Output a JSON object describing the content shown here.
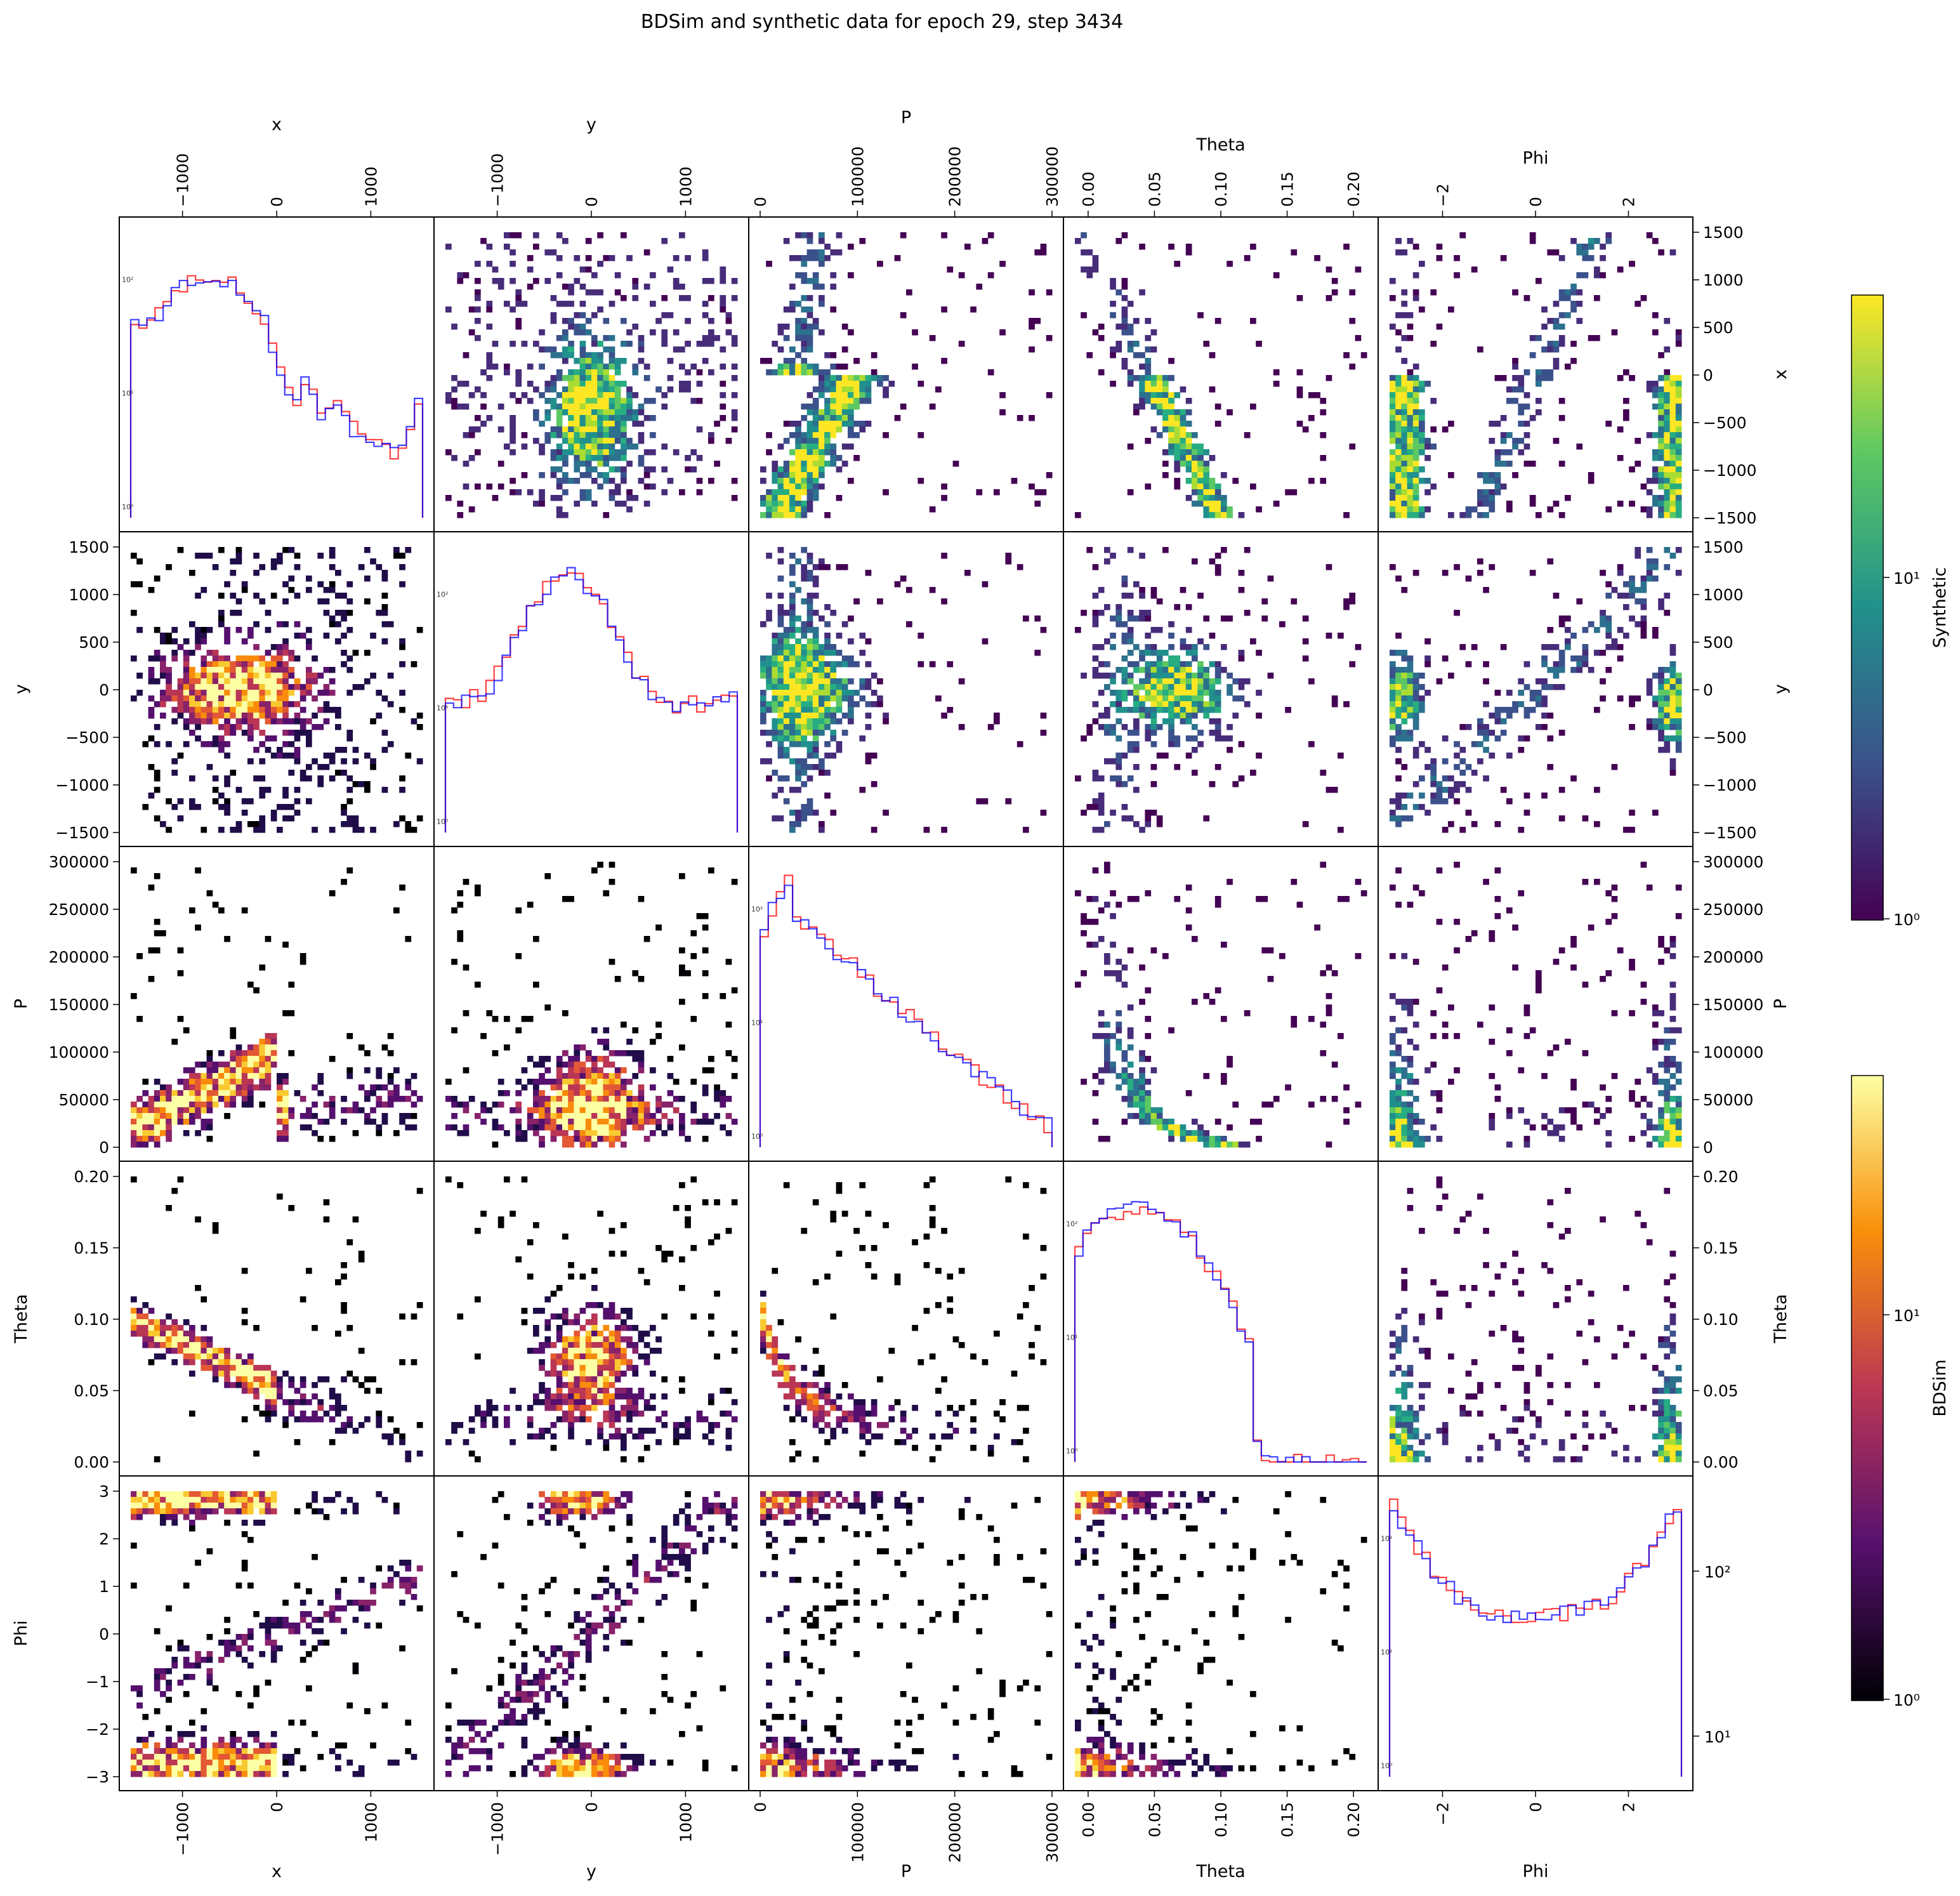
{
  "chart_data": {
    "type": "corner-pairplot",
    "title": "BDSim and synthetic data for epoch 29, step 3434",
    "variables": [
      "x",
      "y",
      "P",
      "Theta",
      "Phi"
    ],
    "ranges": {
      "x": [
        -1550,
        1550
      ],
      "y": [
        -1550,
        1550
      ],
      "P": [
        0,
        300000
      ],
      "Theta": [
        -0.01,
        0.21
      ],
      "Phi": [
        -3.14,
        3.14
      ]
    },
    "ticks": {
      "x": [
        -1000,
        0,
        1000
      ],
      "y": [
        -1000,
        0,
        1000
      ],
      "P": [
        0,
        100000,
        200000,
        300000
      ],
      "Theta": [
        0.0,
        0.05,
        0.1,
        0.15,
        0.2
      ],
      "Phi": [
        -2,
        0,
        2
      ]
    },
    "tick_labels_left": {
      "x": [],
      "y": [
        "−1500",
        "−1000",
        "−500",
        "0",
        "500",
        "1000",
        "1500"
      ],
      "P": [
        "0",
        "50000",
        "100000",
        "150000",
        "200000",
        "250000",
        "300000"
      ],
      "Theta": [
        "0.00",
        "0.05",
        "0.10",
        "0.15",
        "0.20"
      ],
      "Phi": [
        "−3",
        "−2",
        "−1",
        "0",
        "1",
        "2",
        "3"
      ]
    },
    "tick_labels_right": {
      "x": [
        "−1500",
        "−1000",
        "−500",
        "0",
        "500",
        "1000",
        "1500"
      ],
      "y": [
        "−1500",
        "−1000",
        "−500",
        "0",
        "500",
        "1000",
        "1500"
      ],
      "P": [
        "0",
        "50000",
        "100000",
        "150000",
        "200000",
        "250000",
        "300000"
      ],
      "Theta": [
        "0.00",
        "0.05",
        "0.10",
        "0.15",
        "0.20"
      ]
    },
    "tick_labels_axis": {
      "x": [
        "−1000",
        "0",
        "1000"
      ],
      "y": [
        "−1000",
        "0",
        "1000"
      ],
      "P": [
        "0",
        "100000",
        "200000",
        "300000"
      ],
      "Theta": [
        "0.00",
        "0.05",
        "0.10",
        "0.15",
        "0.20"
      ],
      "Phi": [
        "−2",
        "0",
        "2"
      ]
    },
    "lower_triangle": {
      "source": "BDSim",
      "colormap": "inferno",
      "scale": "log"
    },
    "upper_triangle": {
      "source": "Synthetic",
      "colormap": "viridis",
      "scale": "log"
    },
    "diagonal": {
      "type": "step-histogram",
      "scale": "log",
      "series": [
        {
          "color": "#ff0000",
          "y_ticks": [
            "10²",
            "10¹",
            "10⁰"
          ]
        },
        {
          "color": "#0000ff",
          "y_ticks": [
            "10²",
            "10¹",
            "10⁰"
          ]
        }
      ]
    },
    "colorbars": [
      {
        "label": "Synthetic",
        "colormap": "viridis",
        "ticks": [
          "10¹",
          "10⁰"
        ]
      },
      {
        "label": "BDSim",
        "colormap": "inferno",
        "ticks": [
          "10¹",
          "10⁰"
        ]
      }
    ],
    "diag_hist_x": {
      "values": [
        38,
        40,
        42,
        48,
        60,
        75,
        88,
        95,
        92,
        85,
        90,
        100,
        95,
        85,
        60,
        55,
        45,
        25,
        15,
        10,
        9,
        12,
        10,
        7,
        8,
        9,
        6,
        5,
        4.5,
        4,
        3.5,
        4,
        3,
        3.5,
        5,
        8
      ],
      "top_tick": "10²",
      "mid_tick": "10¹"
    }
  }
}
